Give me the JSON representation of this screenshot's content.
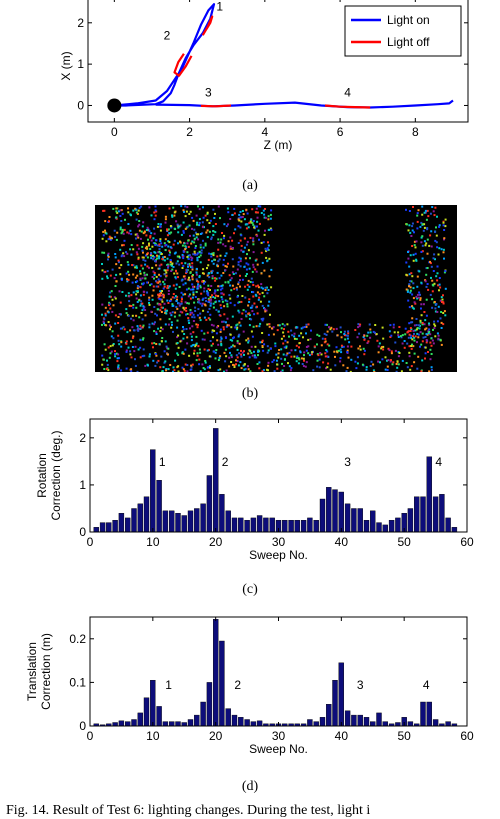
{
  "panels": {
    "a": "(a)",
    "b": "(b)",
    "c": "(c)",
    "d": "(d)"
  },
  "caption": "Fig. 14.   Result of Test 6: lighting changes. During the test, light i",
  "chart_data": [
    {
      "type": "line",
      "panel": "a",
      "xlabel": "Z (m)",
      "ylabel": "X (m)",
      "xlim": [
        -0.7,
        9.4
      ],
      "ylim": [
        -0.4,
        2.6
      ],
      "xticks": [
        0,
        2,
        4,
        6,
        8
      ],
      "yticks": [
        0,
        1,
        2
      ],
      "legend_position": "top-right",
      "series": [
        {
          "name": "Light on",
          "color": "#0000ff",
          "x": [
            0,
            0.6,
            1.1,
            1.4,
            1.8,
            2.1,
            2.3,
            2.5,
            2.65,
            2.55,
            2.35,
            2.1,
            1.9,
            1.7,
            1.6,
            1.5,
            1.3,
            1.1,
            0.8,
            0.3,
            0
          ],
          "y": [
            0,
            0.05,
            0.12,
            0.35,
            0.9,
            1.5,
            1.95,
            2.3,
            2.45,
            2.1,
            1.75,
            1.45,
            1.15,
            0.75,
            0.5,
            0.3,
            0.1,
            0.03,
            0.02,
            0,
            0
          ]
        },
        {
          "name": "Light on",
          "color": "#0000ff",
          "x": [
            1.1,
            2.0,
            2.6,
            3.2,
            4.0,
            4.8,
            5.5,
            6.2,
            6.8,
            7.4,
            8.0,
            8.6,
            8.9,
            9.0
          ],
          "y": [
            0.02,
            0.01,
            -0.02,
            0.0,
            0.04,
            0.07,
            0.0,
            -0.04,
            -0.05,
            -0.03,
            0.0,
            0.03,
            0.05,
            0.12
          ]
        },
        {
          "name": "Light off",
          "color": "#ff0000",
          "x": [
            2.45,
            2.55,
            2.6,
            2.48,
            2.35
          ],
          "y": [
            1.85,
            2.0,
            2.15,
            1.9,
            1.7
          ]
        },
        {
          "name": "Light off",
          "color": "#ff0000",
          "x": [
            1.85,
            1.7,
            1.6,
            1.72,
            1.9,
            2.05
          ],
          "y": [
            1.25,
            1.05,
            0.8,
            0.72,
            0.95,
            1.2
          ]
        },
        {
          "name": "Light off",
          "color": "#ff0000",
          "x": [
            2.3,
            2.7,
            3.1
          ],
          "y": [
            -0.01,
            -0.02,
            0.0
          ]
        },
        {
          "name": "Light off",
          "color": "#ff0000",
          "x": [
            5.6,
            6.0,
            6.4,
            6.8
          ],
          "y": [
            0.0,
            -0.03,
            -0.04,
            -0.05
          ]
        }
      ],
      "legend": [
        "Light on",
        "Light off"
      ],
      "start_marker": {
        "x": 0,
        "y": 0
      },
      "annotations": [
        {
          "text": "1",
          "x": 2.8,
          "y": 2.3
        },
        {
          "text": "2",
          "x": 1.4,
          "y": 1.6
        },
        {
          "text": "3",
          "x": 2.5,
          "y": 0.22
        },
        {
          "text": "4",
          "x": 6.2,
          "y": 0.22
        }
      ]
    },
    {
      "type": "bar",
      "panel": "c",
      "xlabel": "Sweep No.",
      "ylabel_lines": [
        "Rotation",
        "Correction (deg.)"
      ],
      "xlim": [
        0,
        60
      ],
      "ylim": [
        0,
        2.4
      ],
      "xticks": [
        0,
        10,
        20,
        30,
        40,
        50,
        60
      ],
      "yticks": [
        0,
        1,
        2
      ],
      "ytick_labels": [
        "0",
        "1",
        "2"
      ],
      "color": "#0d0d7a",
      "x": [
        1,
        2,
        3,
        4,
        5,
        6,
        7,
        8,
        9,
        10,
        11,
        12,
        13,
        14,
        15,
        16,
        17,
        18,
        19,
        20,
        21,
        22,
        23,
        24,
        25,
        26,
        27,
        28,
        29,
        30,
        31,
        32,
        33,
        34,
        35,
        36,
        37,
        38,
        39,
        40,
        41,
        42,
        43,
        44,
        45,
        46,
        47,
        48,
        49,
        50,
        51,
        52,
        53,
        54,
        55,
        56,
        57,
        58
      ],
      "values": [
        0.1,
        0.2,
        0.2,
        0.25,
        0.4,
        0.3,
        0.5,
        0.6,
        0.75,
        1.75,
        1.1,
        0.45,
        0.45,
        0.4,
        0.35,
        0.45,
        0.5,
        0.6,
        1.2,
        2.2,
        0.8,
        0.45,
        0.3,
        0.3,
        0.25,
        0.3,
        0.35,
        0.3,
        0.3,
        0.25,
        0.25,
        0.25,
        0.25,
        0.25,
        0.3,
        0.25,
        0.7,
        0.95,
        0.9,
        0.85,
        0.6,
        0.5,
        0.5,
        0.25,
        0.45,
        0.2,
        0.15,
        0.25,
        0.3,
        0.4,
        0.5,
        0.75,
        0.75,
        1.6,
        0.75,
        0.8,
        0.3,
        0.1
      ],
      "annotations": [
        {
          "text": "1",
          "x": 11.5,
          "y": 1.4
        },
        {
          "text": "2",
          "x": 21.5,
          "y": 1.4
        },
        {
          "text": "3",
          "x": 41,
          "y": 1.4
        },
        {
          "text": "4",
          "x": 55.5,
          "y": 1.4
        }
      ]
    },
    {
      "type": "bar",
      "panel": "d",
      "xlabel": "Sweep No.",
      "ylabel_lines": [
        "Translation",
        "Correction (m)"
      ],
      "xlim": [
        0,
        60
      ],
      "ylim": [
        0,
        0.25
      ],
      "xticks": [
        0,
        10,
        20,
        30,
        40,
        50,
        60
      ],
      "yticks": [
        0,
        0.1,
        0.2
      ],
      "ytick_labels": [
        "0",
        "0.1",
        "0.2"
      ],
      "color": "#0d0d7a",
      "x": [
        1,
        2,
        3,
        4,
        5,
        6,
        7,
        8,
        9,
        10,
        11,
        12,
        13,
        14,
        15,
        16,
        17,
        18,
        19,
        20,
        21,
        22,
        23,
        24,
        25,
        26,
        27,
        28,
        29,
        30,
        31,
        32,
        33,
        34,
        35,
        36,
        37,
        38,
        39,
        40,
        41,
        42,
        43,
        44,
        45,
        46,
        47,
        48,
        49,
        50,
        51,
        52,
        53,
        54,
        55,
        56,
        57,
        58
      ],
      "values": [
        0.005,
        0.003,
        0.005,
        0.008,
        0.012,
        0.01,
        0.015,
        0.03,
        0.065,
        0.105,
        0.045,
        0.01,
        0.01,
        0.01,
        0.008,
        0.015,
        0.025,
        0.055,
        0.1,
        0.245,
        0.195,
        0.04,
        0.025,
        0.02,
        0.015,
        0.01,
        0.012,
        0.005,
        0.005,
        0.005,
        0.005,
        0.005,
        0.005,
        0.005,
        0.015,
        0.01,
        0.02,
        0.05,
        0.105,
        0.145,
        0.035,
        0.025,
        0.025,
        0.02,
        0.01,
        0.03,
        0.01,
        0.005,
        0.008,
        0.02,
        0.01,
        0.005,
        0.055,
        0.055,
        0.015,
        0.005,
        0.01,
        0.005
      ],
      "annotations": [
        {
          "text": "1",
          "x": 12.5,
          "y": 0.085
        },
        {
          "text": "2",
          "x": 23.5,
          "y": 0.085
        },
        {
          "text": "3",
          "x": 43,
          "y": 0.085
        },
        {
          "text": "4",
          "x": 53.5,
          "y": 0.085
        }
      ]
    }
  ]
}
